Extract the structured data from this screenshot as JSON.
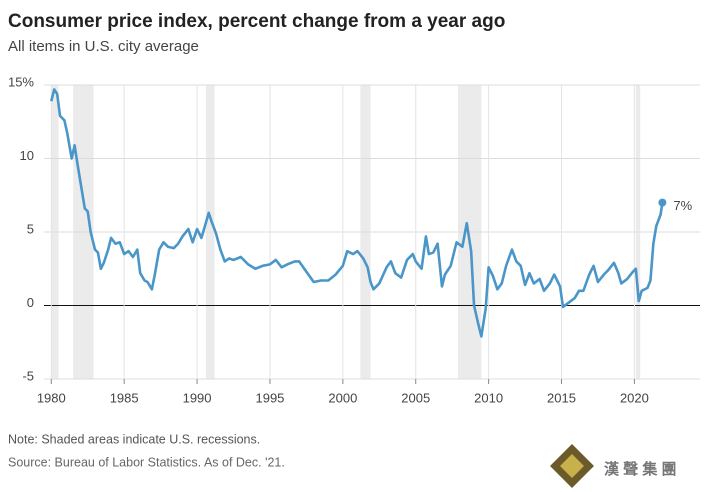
{
  "chart_data": {
    "type": "line",
    "title": "Consumer price index, percent change from a year ago",
    "subtitle": "All items in U.S. city average",
    "note": "Note: Shaded areas indicate U.S. recessions.",
    "source": "Source: Bureau of Labor Statistics. As of Dec. '21.",
    "watermark": "漢 聲 集 團",
    "xlim": [
      1979.5,
      2024.5
    ],
    "ylim": [
      -5,
      15
    ],
    "xticks": [
      1980,
      1985,
      1990,
      1995,
      2000,
      2005,
      2010,
      2015,
      2020
    ],
    "yticks": [
      -5,
      0,
      5,
      10,
      {
        "value": 15,
        "label": "15%"
      }
    ],
    "grid": true,
    "recessions": [
      [
        1980.0,
        1980.5
      ],
      [
        1981.5,
        1982.9
      ],
      [
        1990.6,
        1991.2
      ],
      [
        2001.2,
        2001.9
      ],
      [
        2007.9,
        2009.5
      ],
      [
        2020.1,
        2020.4
      ]
    ],
    "x": [
      1980.0,
      1980.2,
      1980.4,
      1980.6,
      1980.9,
      1981.1,
      1981.4,
      1981.6,
      1981.8,
      1982.0,
      1982.3,
      1982.5,
      1982.7,
      1983.0,
      1983.2,
      1983.4,
      1983.6,
      1983.9,
      1984.1,
      1984.4,
      1984.7,
      1985.0,
      1985.3,
      1985.6,
      1985.9,
      1986.1,
      1986.4,
      1986.6,
      1986.9,
      1987.1,
      1987.4,
      1987.7,
      1988.0,
      1988.4,
      1988.7,
      1989.0,
      1989.4,
      1989.7,
      1990.0,
      1990.3,
      1990.6,
      1990.8,
      1991.0,
      1991.3,
      1991.6,
      1991.9,
      1992.2,
      1992.5,
      1993.0,
      1993.5,
      1994.0,
      1994.5,
      1995.0,
      1995.4,
      1995.8,
      1996.2,
      1996.7,
      1997.0,
      1997.5,
      1998.0,
      1998.5,
      1999.0,
      1999.5,
      2000.0,
      2000.3,
      2000.7,
      2001.0,
      2001.4,
      2001.7,
      2001.9,
      2002.1,
      2002.5,
      2003.0,
      2003.3,
      2003.6,
      2004.0,
      2004.4,
      2004.8,
      2005.0,
      2005.4,
      2005.7,
      2005.9,
      2006.2,
      2006.5,
      2006.8,
      2007.0,
      2007.4,
      2007.8,
      2008.2,
      2008.5,
      2008.8,
      2009.0,
      2009.3,
      2009.5,
      2009.8,
      2010.0,
      2010.3,
      2010.6,
      2010.9,
      2011.2,
      2011.6,
      2011.9,
      2012.2,
      2012.5,
      2012.8,
      2013.1,
      2013.5,
      2013.8,
      2014.2,
      2014.5,
      2014.9,
      2015.1,
      2015.5,
      2015.9,
      2016.2,
      2016.5,
      2016.9,
      2017.2,
      2017.5,
      2017.9,
      2018.2,
      2018.6,
      2018.9,
      2019.1,
      2019.5,
      2019.9,
      2020.1,
      2020.3,
      2020.5,
      2020.9,
      2021.1,
      2021.3,
      2021.5,
      2021.8,
      2021.92
    ],
    "series": [
      {
        "name": "CPI",
        "color": "#4a96c9",
        "values": [
          13.9,
          14.7,
          14.4,
          12.9,
          12.6,
          11.7,
          10.0,
          10.9,
          9.6,
          8.4,
          6.6,
          6.4,
          5.0,
          3.8,
          3.6,
          2.5,
          2.9,
          3.8,
          4.6,
          4.2,
          4.3,
          3.5,
          3.7,
          3.3,
          3.8,
          2.2,
          1.7,
          1.6,
          1.1,
          2.1,
          3.8,
          4.3,
          4.0,
          3.9,
          4.2,
          4.7,
          5.2,
          4.3,
          5.2,
          4.6,
          5.6,
          6.3,
          5.7,
          4.9,
          3.8,
          3.0,
          3.2,
          3.1,
          3.3,
          2.8,
          2.5,
          2.7,
          2.8,
          3.1,
          2.6,
          2.8,
          3.0,
          3.0,
          2.3,
          1.6,
          1.7,
          1.7,
          2.1,
          2.7,
          3.7,
          3.5,
          3.7,
          3.2,
          2.6,
          1.6,
          1.1,
          1.5,
          2.6,
          3.0,
          2.2,
          1.9,
          3.1,
          3.5,
          3.0,
          2.5,
          4.7,
          3.5,
          3.6,
          4.2,
          1.3,
          2.1,
          2.7,
          4.3,
          4.0,
          5.6,
          3.7,
          0.0,
          -1.3,
          -2.1,
          -0.2,
          2.6,
          2.0,
          1.1,
          1.5,
          2.7,
          3.8,
          3.0,
          2.7,
          1.4,
          2.2,
          1.5,
          1.8,
          1.0,
          1.5,
          2.1,
          1.3,
          -0.1,
          0.2,
          0.5,
          1.0,
          1.0,
          2.1,
          2.7,
          1.6,
          2.1,
          2.4,
          2.9,
          2.2,
          1.5,
          1.8,
          2.3,
          2.5,
          0.3,
          1.0,
          1.2,
          1.7,
          4.2,
          5.4,
          6.2,
          7.0
        ],
        "value_labels": {
          "134": "7%"
        }
      }
    ]
  }
}
